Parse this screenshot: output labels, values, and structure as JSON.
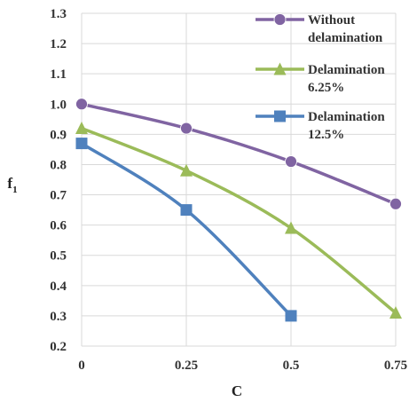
{
  "chart_data": {
    "type": "line",
    "title": "",
    "xlabel": "C",
    "ylabel": "f",
    "ylabel_subscript": "1",
    "x": [
      0,
      0.25,
      0.5,
      0.75
    ],
    "x_tick_labels": [
      "0",
      "0.25",
      "0.5",
      "0.75"
    ],
    "xlim": [
      0,
      0.75
    ],
    "ylim": [
      0.2,
      1.3
    ],
    "y_tick_labels": [
      "0.2",
      "0.3",
      "0.4",
      "0.5",
      "0.6",
      "0.7",
      "0.8",
      "0.9",
      "1.0",
      "1.1",
      "1.2",
      "1.3"
    ],
    "grid": true,
    "legend_position": "top-right",
    "series": [
      {
        "name_lines": [
          "Without",
          "delamination"
        ],
        "color": "#8064a2",
        "marker": "circle",
        "x": [
          0,
          0.25,
          0.5,
          0.75
        ],
        "y": [
          1.0,
          0.92,
          0.81,
          0.67
        ]
      },
      {
        "name_lines": [
          "Delamination",
          "6.25%"
        ],
        "color": "#9bbb59",
        "marker": "triangle",
        "x": [
          0,
          0.25,
          0.5,
          0.75
        ],
        "y": [
          0.92,
          0.78,
          0.59,
          0.31
        ]
      },
      {
        "name_lines": [
          "Delamination",
          "12.5%"
        ],
        "color": "#4f81bd",
        "marker": "square",
        "x": [
          0,
          0.25,
          0.5
        ],
        "y": [
          0.87,
          0.65,
          0.3
        ]
      }
    ]
  }
}
